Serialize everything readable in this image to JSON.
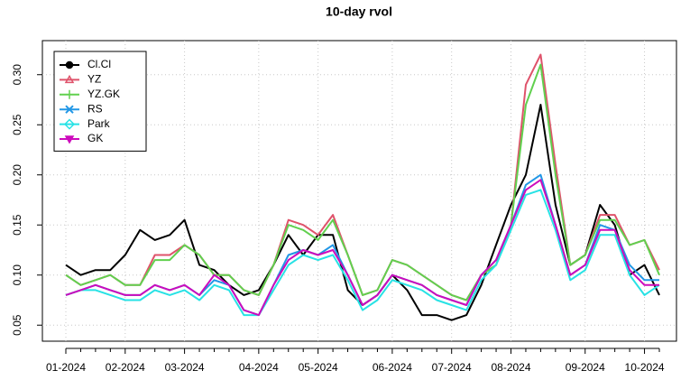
{
  "chart_data": {
    "type": "line",
    "title": "10-day rvol",
    "categories": [
      "01-2024",
      null,
      null,
      null,
      "02-2024",
      null,
      null,
      null,
      "03-2024",
      null,
      null,
      null,
      null,
      "04-2024",
      null,
      null,
      null,
      "05-2024",
      null,
      null,
      null,
      null,
      "06-2024",
      null,
      null,
      null,
      "07-2024",
      null,
      null,
      null,
      "08-2024",
      null,
      null,
      null,
      null,
      "09-2024",
      null,
      null,
      null,
      "10-2024",
      null
    ],
    "series": [
      {
        "name": "Cl.Cl",
        "color": "#000000",
        "marker": "circle",
        "values": [
          0.11,
          0.1,
          0.105,
          0.105,
          0.12,
          0.145,
          0.135,
          0.14,
          0.155,
          0.11,
          0.105,
          0.09,
          0.08,
          0.085,
          0.11,
          0.14,
          0.12,
          0.14,
          0.14,
          0.085,
          0.07,
          0.08,
          0.1,
          0.085,
          0.06,
          0.06,
          0.055,
          0.06,
          0.09,
          0.13,
          0.17,
          0.2,
          0.27,
          0.17,
          0.11,
          0.12,
          0.17,
          0.15,
          0.1,
          0.11,
          0.08
        ]
      },
      {
        "name": "YZ",
        "color": "#DF536B",
        "marker": "triangle",
        "values": [
          0.1,
          0.09,
          0.095,
          0.1,
          0.09,
          0.09,
          0.12,
          0.12,
          0.13,
          0.12,
          0.1,
          0.1,
          0.085,
          0.08,
          0.11,
          0.155,
          0.15,
          0.14,
          0.16,
          0.12,
          0.08,
          0.085,
          0.115,
          0.11,
          0.1,
          0.09,
          0.08,
          0.075,
          0.1,
          0.11,
          0.15,
          0.29,
          0.32,
          0.21,
          0.11,
          0.12,
          0.16,
          0.16,
          0.13,
          0.135,
          0.105
        ]
      },
      {
        "name": "YZ.GK",
        "color": "#61D04F",
        "marker": "plus",
        "values": [
          0.1,
          0.09,
          0.095,
          0.1,
          0.09,
          0.09,
          0.115,
          0.115,
          0.13,
          0.12,
          0.1,
          0.1,
          0.085,
          0.08,
          0.11,
          0.15,
          0.145,
          0.135,
          0.155,
          0.12,
          0.08,
          0.085,
          0.115,
          0.11,
          0.1,
          0.09,
          0.08,
          0.075,
          0.1,
          0.11,
          0.15,
          0.27,
          0.31,
          0.2,
          0.11,
          0.12,
          0.155,
          0.155,
          0.13,
          0.135,
          0.1
        ]
      },
      {
        "name": "RS",
        "color": "#2297E6",
        "marker": "cross",
        "values": [
          0.08,
          0.085,
          0.09,
          0.085,
          0.08,
          0.08,
          0.09,
          0.085,
          0.09,
          0.08,
          0.095,
          0.09,
          0.065,
          0.06,
          0.09,
          0.12,
          0.125,
          0.12,
          0.13,
          0.1,
          0.07,
          0.08,
          0.1,
          0.095,
          0.09,
          0.08,
          0.075,
          0.07,
          0.1,
          0.115,
          0.15,
          0.19,
          0.2,
          0.15,
          0.1,
          0.11,
          0.15,
          0.145,
          0.11,
          0.095,
          0.095
        ]
      },
      {
        "name": "Park",
        "color": "#28E2E5",
        "marker": "diamond",
        "values": [
          0.08,
          0.085,
          0.085,
          0.08,
          0.075,
          0.075,
          0.085,
          0.08,
          0.085,
          0.075,
          0.09,
          0.085,
          0.06,
          0.06,
          0.085,
          0.11,
          0.12,
          0.115,
          0.12,
          0.095,
          0.065,
          0.075,
          0.095,
          0.09,
          0.085,
          0.075,
          0.07,
          0.065,
          0.095,
          0.11,
          0.145,
          0.18,
          0.185,
          0.145,
          0.095,
          0.105,
          0.14,
          0.14,
          0.1,
          0.08,
          0.09
        ]
      },
      {
        "name": "GK",
        "color": "#CD0BBC",
        "marker": "down-triangle",
        "values": [
          0.08,
          0.085,
          0.09,
          0.085,
          0.08,
          0.08,
          0.09,
          0.085,
          0.09,
          0.08,
          0.1,
          0.09,
          0.065,
          0.06,
          0.09,
          0.115,
          0.125,
          0.12,
          0.125,
          0.1,
          0.07,
          0.08,
          0.1,
          0.095,
          0.09,
          0.08,
          0.075,
          0.07,
          0.1,
          0.115,
          0.15,
          0.185,
          0.195,
          0.15,
          0.1,
          0.11,
          0.145,
          0.145,
          0.105,
          0.09,
          0.09
        ]
      }
    ],
    "ylim": [
      0.034,
      0.334
    ],
    "yticks": [
      0.05,
      {
        "value": 0.1,
        "label": "0.10"
      },
      0.15,
      {
        "value": 0.2,
        "label": "0.20"
      },
      0.25,
      {
        "value": 0.3,
        "label": "0.30"
      }
    ],
    "grid": true,
    "legend": "top-left"
  }
}
